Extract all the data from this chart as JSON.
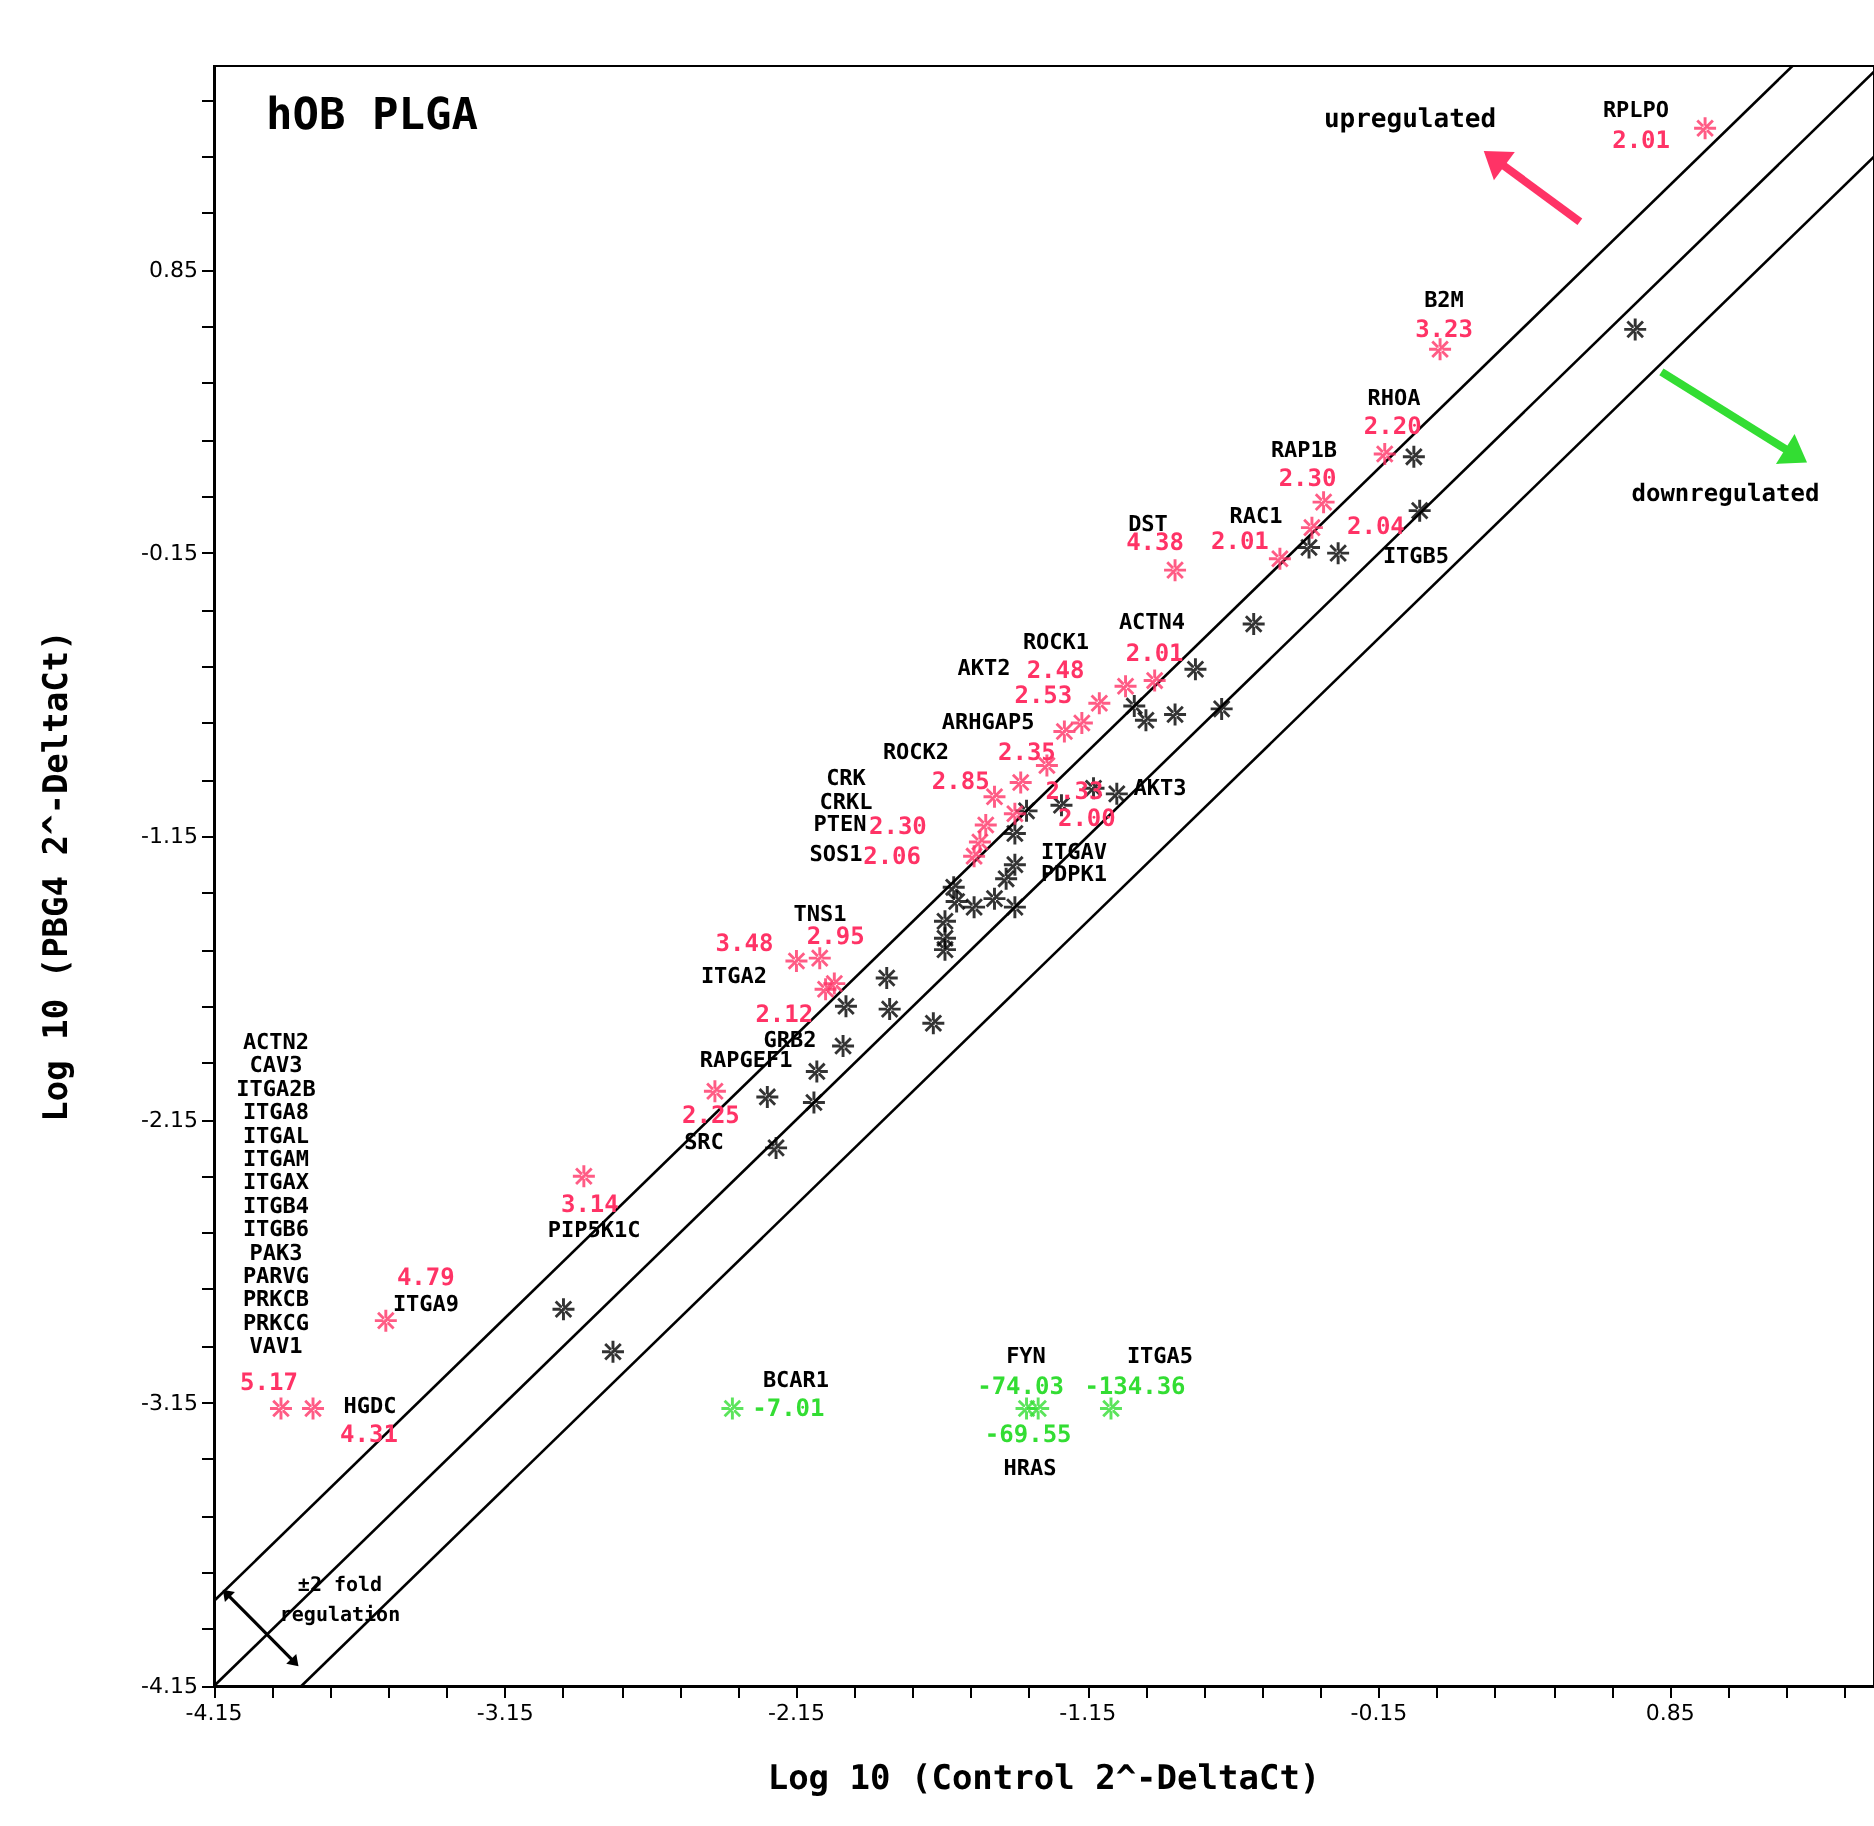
{
  "chart_data": {
    "type": "scatter",
    "title": "hOB PLGA",
    "xlabel": "Log 10 (Control 2^-DeltaCt)",
    "ylabel": "Log 10 (PBG4 2^-DeltaCt)",
    "xlim": [
      -4.15,
      1.55
    ],
    "ylim": [
      -4.15,
      1.57
    ],
    "xticks": [
      -4.15,
      {
        "value": -3.95,
        "label": null
      },
      {
        "value": -3.75,
        "label": null
      },
      {
        "value": -3.55,
        "label": null
      },
      {
        "value": -3.35,
        "label": null
      },
      -3.15,
      {
        "value": -2.95,
        "label": null
      },
      {
        "value": -2.75,
        "label": null
      },
      {
        "value": -2.55,
        "label": null
      },
      {
        "value": -2.35,
        "label": null
      },
      -2.15,
      {
        "value": -1.95,
        "label": null
      },
      {
        "value": -1.75,
        "label": null
      },
      {
        "value": -1.55,
        "label": null
      },
      {
        "value": -1.35,
        "label": null
      },
      -1.15,
      {
        "value": -0.95,
        "label": null
      },
      {
        "value": -0.75,
        "label": null
      },
      {
        "value": -0.55,
        "label": null
      },
      {
        "value": -0.35,
        "label": null
      },
      -0.15,
      {
        "value": 0.05,
        "label": null
      },
      {
        "value": 0.25,
        "label": null
      },
      {
        "value": 0.45,
        "label": null
      },
      {
        "value": 0.65,
        "label": null
      },
      0.85,
      {
        "value": 1.05,
        "label": null
      },
      {
        "value": 1.25,
        "label": null
      },
      {
        "value": 1.45,
        "label": null
      }
    ],
    "yticks": [
      -4.15,
      {
        "value": -3.95,
        "label": null
      },
      {
        "value": -3.75,
        "label": null
      },
      {
        "value": -3.55,
        "label": null
      },
      {
        "value": -3.35,
        "label": null
      },
      -3.15,
      {
        "value": -2.95,
        "label": null
      },
      {
        "value": -2.75,
        "label": null
      },
      {
        "value": -2.55,
        "label": null
      },
      {
        "value": -2.35,
        "label": null
      },
      -2.15,
      {
        "value": -1.95,
        "label": null
      },
      {
        "value": -1.75,
        "label": null
      },
      {
        "value": -1.55,
        "label": null
      },
      {
        "value": -1.35,
        "label": null
      },
      -1.15,
      {
        "value": -0.95,
        "label": null
      },
      {
        "value": -0.75,
        "label": null
      },
      {
        "value": -0.55,
        "label": null
      },
      {
        "value": -0.35,
        "label": null
      },
      -0.15,
      {
        "value": 0.05,
        "label": null
      },
      {
        "value": 0.25,
        "label": null
      },
      {
        "value": 0.45,
        "label": null
      },
      {
        "value": 0.65,
        "label": null
      },
      0.85,
      {
        "value": 1.05,
        "label": null
      },
      {
        "value": 1.25,
        "label": null
      },
      {
        "value": 1.45,
        "label": null
      }
    ],
    "marker": "star",
    "grid": false,
    "series": [
      {
        "type": "line",
        "marker": "none",
        "color": "#000000",
        "x": [
          -4.15,
          1.27
        ],
        "values": [
          -3.85,
          1.57
        ]
      },
      {
        "type": "line",
        "marker": "none",
        "color": "#000000",
        "x": [
          -4.15,
          1.55
        ],
        "values": [
          -4.15,
          1.55
        ]
      },
      {
        "type": "line",
        "marker": "none",
        "color": "#000000",
        "x": [
          -3.85,
          1.55
        ],
        "values": [
          -4.15,
          1.25
        ]
      },
      {
        "color": "#000000",
        "x": [
          -0.03,
          -0.01,
          -0.39,
          -0.29,
          0.73,
          -0.58,
          -0.78,
          -0.99,
          -0.95,
          -0.85,
          -0.69,
          -1.13,
          -1.05,
          -1.24,
          -1.36,
          -1.4,
          -1.4,
          -1.43,
          -1.61,
          -1.6,
          -1.54,
          -1.47,
          -1.4,
          -1.64,
          -1.64,
          -1.64,
          -1.84,
          -1.83,
          -1.68,
          -1.98,
          -1.99,
          -2.08,
          -2.25,
          -2.09,
          -2.22,
          -2.95,
          -2.78
        ],
        "values": [
          0.19,
          0.0,
          -0.13,
          -0.15,
          0.64,
          -0.4,
          -0.56,
          -0.69,
          -0.74,
          -0.72,
          -0.7,
          -0.98,
          -1.0,
          -1.04,
          -1.06,
          -1.14,
          -1.25,
          -1.3,
          -1.33,
          -1.38,
          -1.4,
          -1.37,
          -1.4,
          -1.45,
          -1.51,
          -1.55,
          -1.65,
          -1.76,
          -1.81,
          -1.75,
          -1.89,
          -1.98,
          -2.07,
          -2.09,
          -2.25,
          -2.82,
          -2.97
        ]
      },
      {
        "color": "#ff3366",
        "x": [
          0.97,
          0.06,
          -0.13,
          -0.34,
          -0.38,
          -0.49,
          -0.85,
          -0.92,
          -1.02,
          -1.11,
          -1.17,
          -1.23,
          -1.29,
          -1.38,
          -1.47,
          -1.4,
          -1.5,
          -1.52,
          -1.54,
          -2.15,
          -2.07,
          -2.02,
          -2.05,
          -2.43,
          -2.88,
          -3.56,
          -3.92,
          -3.81
        ],
        "values": [
          1.35,
          0.57,
          0.2,
          0.03,
          -0.06,
          -0.17,
          -0.21,
          -0.6,
          -0.62,
          -0.68,
          -0.75,
          -0.78,
          -0.9,
          -0.96,
          -1.01,
          -1.07,
          -1.11,
          -1.17,
          -1.22,
          -1.59,
          -1.58,
          -1.67,
          -1.69,
          -2.05,
          -2.35,
          -2.86,
          -3.17,
          -3.17
        ]
      },
      {
        "color": "#33dd33",
        "x": [
          -2.37,
          -1.36,
          -1.32,
          -1.07
        ],
        "values": [
          -3.17,
          -3.17,
          -3.17,
          -3.17
        ]
      }
    ],
    "annotations": [
      "RPLPO",
      "B2M",
      "RHOA",
      "RAP1B",
      "RAC1",
      "DST",
      "ITGB5",
      "ACTN4",
      "ROCK1",
      "AKT2",
      "ARHGAP5",
      "ROCK2",
      "CRK",
      "CRKL",
      "PTEN",
      "SOS1",
      "AKT3",
      "ITGAV",
      "PDPK1",
      "TNS1",
      "ITGA2",
      "GRB2",
      "RAPGEF1",
      "SRC",
      "PIP5K1C",
      "ITGA9",
      "HGDC",
      "BCAR1",
      "FYN",
      "ITGA5",
      "HRAS",
      "ACTN2",
      "CAV3",
      "ITGA2B",
      "ITGA8",
      "ITGAL",
      "ITGAM",
      "ITGAX",
      "ITGB4",
      "ITGB6",
      "PAK3",
      "PARVG",
      "PRKCB",
      "PRKCG",
      "VAV1",
      "upregulated",
      "±2 fold",
      "regulation",
      {
        "text": "2.01",
        "x": 0.97,
        "y": 1.35
      },
      {
        "text": "3.23",
        "x": 0.06,
        "y": 0.57
      },
      {
        "text": "2.20",
        "x": -0.13,
        "y": 0.2
      },
      {
        "text": "2.30",
        "x": -0.34,
        "y": 0.03
      },
      {
        "text": "2.04",
        "x": -0.38,
        "y": -0.06
      },
      {
        "text": "2.01",
        "x": -0.49,
        "y": -0.17
      },
      {
        "text": "4.38",
        "x": -0.85,
        "y": -0.21
      },
      {
        "text": "2.01",
        "x": -0.92,
        "y": -0.6
      },
      {
        "text": "2.48",
        "x": -1.02,
        "y": -0.62
      },
      {
        "text": "2.53",
        "x": -1.11,
        "y": -0.68
      },
      {
        "text": "2.35",
        "x": -1.29,
        "y": -0.9
      },
      {
        "text": "2.85",
        "x": -1.38,
        "y": -0.96
      },
      {
        "text": "2.33",
        "x": -1.47,
        "y": -1.01
      },
      {
        "text": "2.00",
        "x": -1.4,
        "y": -1.07
      },
      {
        "text": "2.30",
        "x": -1.52,
        "y": -1.17
      },
      {
        "text": "2.06",
        "x": -1.54,
        "y": -1.22
      },
      {
        "text": "3.48",
        "x": -2.15,
        "y": -1.59
      },
      {
        "text": "2.95",
        "x": -2.07,
        "y": -1.58
      },
      {
        "text": "2.12",
        "x": -2.02,
        "y": -1.67
      },
      {
        "text": "2.25",
        "x": -2.43,
        "y": -2.05
      },
      {
        "text": "3.14",
        "x": -2.88,
        "y": -2.35
      },
      {
        "text": "4.79",
        "x": -3.56,
        "y": -2.86
      },
      {
        "text": "5.17",
        "x": -3.92,
        "y": -3.17
      },
      {
        "text": "4.31",
        "x": -3.81,
        "y": -3.17
      },
      {
        "text": "-7.01",
        "x": -2.37,
        "y": -3.17
      },
      {
        "text": "-74.03",
        "x": -1.36,
        "y": -3.17
      },
      {
        "text": "-69.55",
        "x": -1.32,
        "y": -3.17
      },
      {
        "text": "-134.36",
        "x": -1.07,
        "y": -3.17
      },
      {
        "text": "downregulated",
        "x": 0.82,
        "y": 0.52
      }
    ]
  }
}
